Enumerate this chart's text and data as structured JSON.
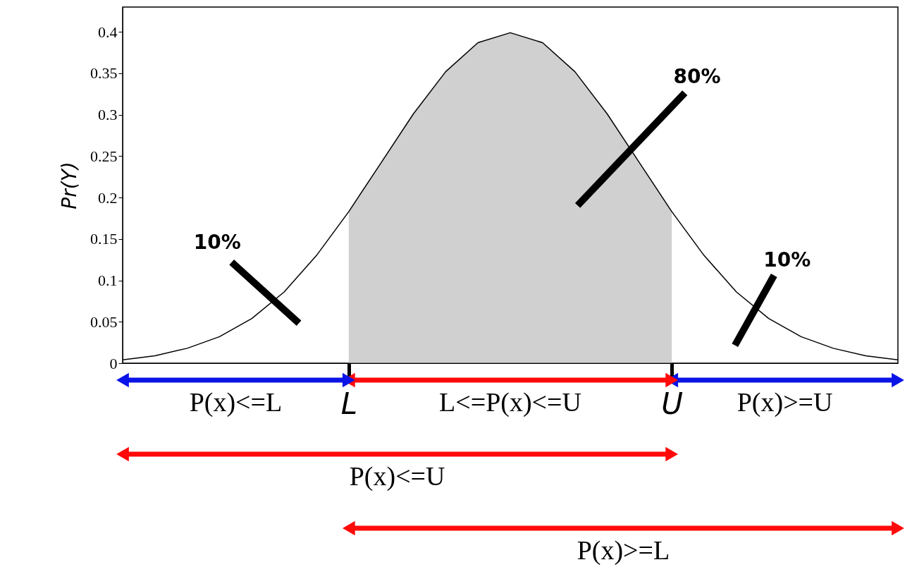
{
  "chart_data": {
    "type": "line",
    "ylabel": "Pr(Y)",
    "categories": [
      null,
      null,
      null,
      null,
      null,
      null,
      null,
      "L",
      null,
      null,
      null,
      null,
      null,
      null,
      null,
      null,
      null,
      "U",
      null,
      null,
      null,
      null,
      null,
      null,
      null
    ],
    "series": [
      {
        "type": "area",
        "color": "#b0b0b0",
        "values": [
          null,
          null,
          null,
          null,
          null,
          null,
          null,
          0.183,
          0.242,
          0.301,
          0.352,
          0.387,
          0.399,
          0.387,
          0.352,
          0.301,
          0.242,
          0.183,
          null,
          null,
          null,
          null,
          null,
          null,
          null
        ]
      },
      {
        "color": "#000000",
        "values": [
          0.004,
          0.009,
          0.018,
          0.032,
          0.054,
          0.086,
          0.13,
          0.183,
          0.242,
          0.301,
          0.352,
          0.387,
          0.399,
          0.387,
          0.352,
          0.301,
          0.242,
          0.183,
          0.13,
          0.086,
          0.054,
          0.032,
          0.018,
          0.009,
          0.004
        ]
      }
    ],
    "ylim": [
      0,
      0.43
    ],
    "yticks": [
      0,
      0.05,
      0.1,
      0.15,
      0.2,
      0.25,
      0.3,
      0.35,
      0.4
    ],
    "grid": false,
    "line_style": "solid",
    "marker": "none",
    "annotations": [
      "10%",
      "80%",
      "10%",
      "P(x)<=L",
      "L<=P(x)<=U",
      "P(x)>=U",
      "P(x)<=U",
      "P(x)>=L"
    ]
  }
}
